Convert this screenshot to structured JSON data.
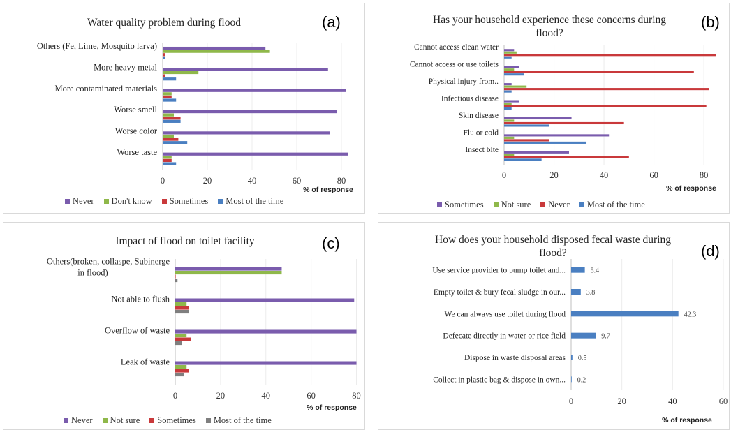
{
  "colors": {
    "purple": "#7a5cad",
    "green": "#8fb84a",
    "red": "#c9393b",
    "blue": "#4a7fc1"
  },
  "chart_data": [
    {
      "panel": "a",
      "letter": "(a)",
      "type": "bar",
      "orientation": "horizontal",
      "title": "Water quality problem during flood",
      "xlabel": "% of response",
      "xlim": [
        0,
        85
      ],
      "xticks": [
        "0",
        "20",
        "40",
        "60",
        "80"
      ],
      "categories": [
        "Others (Fe, Lime, Mosquito larva)",
        "More heavy metal",
        "More contaminated materials",
        "Worse smell",
        "Worse color",
        "Worse taste"
      ],
      "series": [
        {
          "name": "Never",
          "color": "#7a5cad",
          "values": [
            46,
            74,
            82,
            78,
            75,
            83
          ]
        },
        {
          "name": "Don't know",
          "color": "#8fb84a",
          "values": [
            48,
            16,
            4,
            5,
            5,
            4
          ]
        },
        {
          "name": "Sometimes",
          "color": "#c9393b",
          "values": [
            1,
            1,
            4,
            8,
            7,
            4
          ]
        },
        {
          "name": "Most of the time",
          "color": "#4a7fc1",
          "values": [
            1,
            6,
            6,
            8,
            11,
            6
          ]
        }
      ],
      "legend_position": "bottom"
    },
    {
      "panel": "b",
      "letter": "(b)",
      "type": "bar",
      "orientation": "horizontal",
      "title": "Has your household experience these concerns during flood?",
      "xlabel": "% of response",
      "xlim": [
        0,
        85
      ],
      "xticks": [
        "0",
        "20",
        "40",
        "60",
        "80"
      ],
      "categories": [
        "Cannot access clean water",
        "Cannot access or use toilets",
        "Physical injury from..",
        "Infectious disease",
        "Skin disease",
        "Flu or cold",
        "Insect bite"
      ],
      "series": [
        {
          "name": "Sometimes",
          "color": "#7a5cad",
          "values": [
            4,
            6,
            3,
            6,
            27,
            42,
            26
          ]
        },
        {
          "name": "Not sure",
          "color": "#8fb84a",
          "values": [
            5,
            4,
            9,
            3,
            4,
            4,
            4
          ]
        },
        {
          "name": "Never",
          "color": "#c9393b",
          "values": [
            85,
            76,
            82,
            81,
            48,
            18,
            50
          ]
        },
        {
          "name": "Most of the time",
          "color": "#4a7fc1",
          "values": [
            3,
            8,
            3,
            3,
            18,
            33,
            15
          ]
        }
      ],
      "legend_position": "bottom"
    },
    {
      "panel": "c",
      "letter": "(c)",
      "type": "bar",
      "orientation": "horizontal",
      "title": "Impact of flood on toilet facility",
      "xlabel": "% of response",
      "xlim": [
        0,
        82
      ],
      "xticks": [
        "0",
        "20",
        "40",
        "60",
        "80"
      ],
      "categories": [
        "Others(broken, collaspe, Subinerge in flood)",
        "Not able to flush",
        "Overflow of waste",
        "Leak of waste"
      ],
      "series": [
        {
          "name": "Never",
          "color": "#7a5cad",
          "values": [
            47,
            79,
            80,
            80
          ]
        },
        {
          "name": "Not sure",
          "color": "#8fb84a",
          "values": [
            47,
            5,
            5,
            5
          ]
        },
        {
          "name": "Sometimes",
          "color": "#c9393b",
          "values": [
            0,
            6,
            7,
            6
          ]
        },
        {
          "name": "Most of the time",
          "color": "#7f7f7f",
          "values": [
            1,
            6,
            3,
            4
          ]
        }
      ],
      "legend_position": "bottom"
    },
    {
      "panel": "d",
      "letter": "(d)",
      "type": "bar",
      "orientation": "horizontal",
      "title": "How does your household disposed fecal waste during flood?",
      "xlabel": "% of response",
      "xlim": [
        0,
        60
      ],
      "xticks": [
        "0",
        "20",
        "40",
        "60"
      ],
      "categories": [
        "Use service provider to pump toilet and...",
        "Empty toilet & bury fecal sludge in our...",
        "We can always use toilet during flood",
        "Defecate directly in water or rice field",
        "Dispose in waste disposal areas",
        "Collect in plastic bag & dispose in own..."
      ],
      "values": [
        5.4,
        3.8,
        42.3,
        9.7,
        0.5,
        0.2
      ],
      "value_labels": [
        "5.4",
        "3.8",
        "42.3",
        "9.7",
        "0.5",
        "0.2"
      ],
      "color": "#4a7fc1"
    }
  ]
}
